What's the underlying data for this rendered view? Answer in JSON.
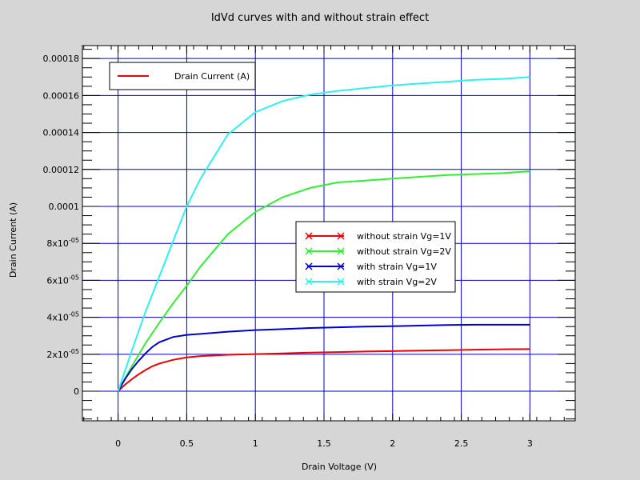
{
  "chart_data": {
    "type": "line",
    "title": "IdVd curves with and without strain effect",
    "xlabel": "Drain Voltage (V)",
    "ylabel": "Drain Current (A)",
    "xlim": [
      -0.26,
      3.33
    ],
    "ylim": [
      -1.6e-05,
      0.000187
    ],
    "grid": true,
    "x_ticks": [
      0,
      0.5,
      1,
      1.5,
      2,
      2.5,
      3
    ],
    "x_tick_labels": [
      "0",
      "0.5",
      "1",
      "1.5",
      "2",
      "2.5",
      "3"
    ],
    "y_ticks": [
      0,
      2e-05,
      4e-05,
      6e-05,
      8e-05,
      0.0001,
      0.00012,
      0.00014,
      0.00016,
      0.00018
    ],
    "y_tick_labels": [
      {
        "base": "0",
        "exp": ""
      },
      {
        "base": "2x10",
        "exp": "-05"
      },
      {
        "base": "4x10",
        "exp": "-05"
      },
      {
        "base": "6x10",
        "exp": "-05"
      },
      {
        "base": "8x10",
        "exp": "-05"
      },
      {
        "base": "0.0001",
        "exp": ""
      },
      {
        "base": "0.00012",
        "exp": ""
      },
      {
        "base": "0.00014",
        "exp": ""
      },
      {
        "base": "0.00016",
        "exp": ""
      },
      {
        "base": "0.00018",
        "exp": ""
      }
    ],
    "legend_top": {
      "placement": "top-left",
      "label": "Drain Current (A)",
      "color": "#ee0000"
    },
    "legend_series_placement": "center-right",
    "series": [
      {
        "name": "without strain Vg=1V",
        "color": "#ee0000",
        "x": [
          0,
          0.05,
          0.1,
          0.15,
          0.2,
          0.25,
          0.3,
          0.4,
          0.5,
          0.6,
          0.8,
          1.0,
          1.2,
          1.4,
          1.6,
          1.8,
          2.0,
          2.2,
          2.4,
          2.6,
          2.8,
          3.0
        ],
        "y": [
          0,
          3.5e-06,
          6.5e-06,
          9.2e-06,
          1.15e-05,
          1.35e-05,
          1.5e-05,
          1.7e-05,
          1.83e-05,
          1.9e-05,
          1.97e-05,
          2.01e-05,
          2.05e-05,
          2.09e-05,
          2.12e-05,
          2.15e-05,
          2.17e-05,
          2.2e-05,
          2.22e-05,
          2.25e-05,
          2.27e-05,
          2.28e-05
        ]
      },
      {
        "name": "without strain Vg=2V",
        "color": "#33ee33",
        "x": [
          0,
          0.1,
          0.2,
          0.3,
          0.4,
          0.5,
          0.6,
          0.8,
          1.0,
          1.2,
          1.4,
          1.6,
          1.8,
          2.0,
          2.2,
          2.4,
          2.6,
          2.8,
          3.0
        ],
        "y": [
          0,
          1.35e-05,
          2.6e-05,
          3.7e-05,
          4.75e-05,
          5.7e-05,
          6.75e-05,
          8.5e-05,
          9.7e-05,
          0.000105,
          0.00011,
          0.000113,
          0.000114,
          0.000115,
          0.000116,
          0.000117,
          0.0001175,
          0.000118,
          0.000119
        ]
      },
      {
        "name": "with strain Vg=1V",
        "color": "#0000cc",
        "x": [
          0,
          0.05,
          0.1,
          0.15,
          0.2,
          0.25,
          0.3,
          0.4,
          0.5,
          0.6,
          0.8,
          1.0,
          1.2,
          1.4,
          1.6,
          1.8,
          2.0,
          2.2,
          2.4,
          2.6,
          2.8,
          3.0
        ],
        "y": [
          0,
          6.5e-06,
          1.2e-05,
          1.65e-05,
          2.05e-05,
          2.4e-05,
          2.65e-05,
          2.93e-05,
          3.05e-05,
          3.1e-05,
          3.22e-05,
          3.31e-05,
          3.36e-05,
          3.42e-05,
          3.46e-05,
          3.5e-05,
          3.52e-05,
          3.55e-05,
          3.58e-05,
          3.6e-05,
          3.6e-05,
          3.6e-05
        ]
      },
      {
        "name": "with strain Vg=2V",
        "color": "#33eeee",
        "x": [
          0,
          0.1,
          0.2,
          0.3,
          0.4,
          0.5,
          0.6,
          0.8,
          1.0,
          1.2,
          1.4,
          1.6,
          1.8,
          2.0,
          2.2,
          2.4,
          2.6,
          2.8,
          3.0
        ],
        "y": [
          0,
          2.2e-05,
          4.3e-05,
          6.2e-05,
          8.1e-05,
          0.0001,
          0.000115,
          0.000139,
          0.000151,
          0.000157,
          0.0001605,
          0.0001625,
          0.000164,
          0.0001655,
          0.0001665,
          0.0001675,
          0.0001685,
          0.000169,
          0.00017
        ]
      }
    ]
  }
}
